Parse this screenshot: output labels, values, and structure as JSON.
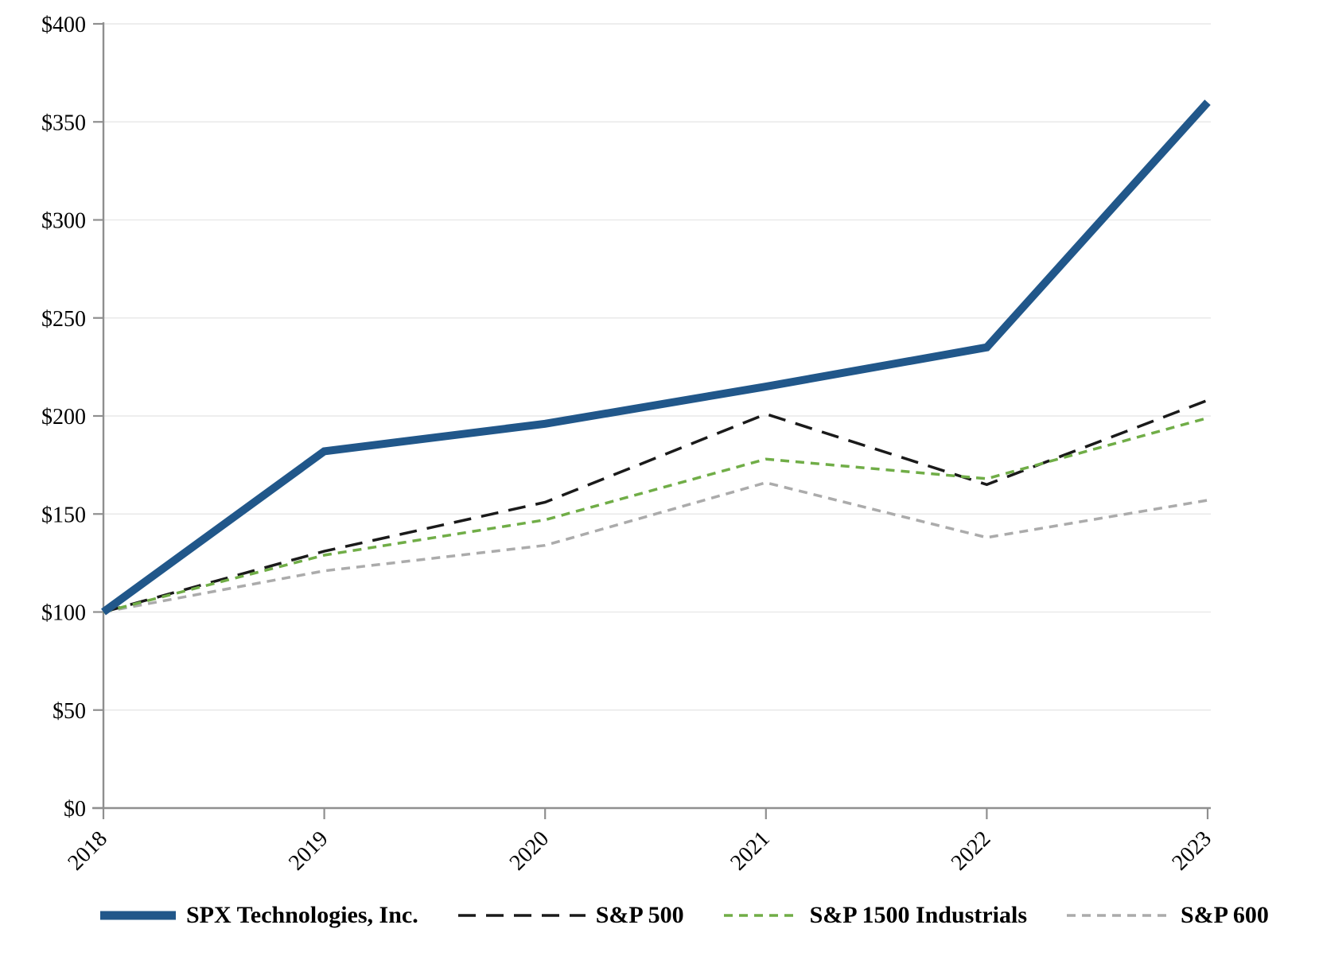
{
  "figure": {
    "background": "#FFFFFF",
    "text_color": "#000000"
  },
  "colors": {
    "axis": "#8F8F8F",
    "gridline": "#E9E9E9",
    "spx_blue": "#21578A",
    "sp500_black": "#1A1A1A",
    "sp1500_green": "#70AD47",
    "sp600_gray": "#ABABAB"
  },
  "chart_data": {
    "type": "line",
    "title": "",
    "xlabel": "",
    "ylabel": "",
    "x_categories": [
      "2018",
      "2019",
      "2020",
      "2021",
      "2022",
      "2023"
    ],
    "y_tick_labels": [
      "$0",
      "$50",
      "$100",
      "$150",
      "$200",
      "$250",
      "$300",
      "$350",
      "$400"
    ],
    "ylim": [
      0,
      400
    ],
    "y_step": 50,
    "grid": "horizontal",
    "legend_position": "bottom",
    "series": [
      {
        "name": "SPX Technologies, Inc.",
        "values": [
          100,
          182,
          196,
          215,
          235,
          360
        ],
        "color": "#21578A",
        "style": "solid",
        "width": 10
      },
      {
        "name": "S&P 500",
        "values": [
          100,
          131,
          156,
          201,
          165,
          208
        ],
        "color": "#1A1A1A",
        "style": "long-dash",
        "width": 3.5
      },
      {
        "name": "S&P 1500 Industrials",
        "values": [
          100,
          129,
          147,
          178,
          168,
          199
        ],
        "color": "#70AD47",
        "style": "short-dash",
        "width": 3.5
      },
      {
        "name": "S&P 600",
        "values": [
          100,
          121,
          134,
          166,
          138,
          157
        ],
        "color": "#ABABAB",
        "style": "short-dash",
        "width": 3.5
      }
    ]
  }
}
